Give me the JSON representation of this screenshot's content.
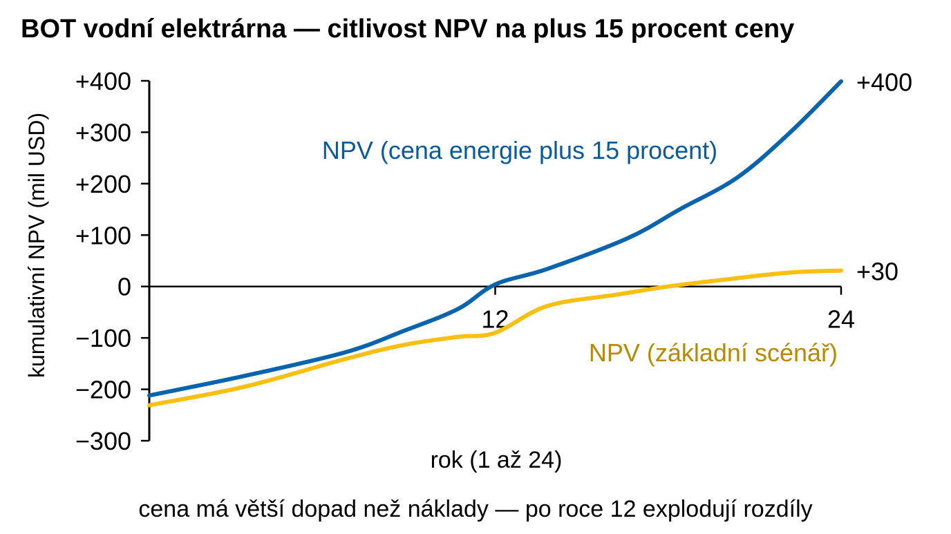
{
  "chart_data": {
    "type": "line",
    "title": "BOT vodní elektrárna — citlivost NPV na plus 15 procent ceny",
    "xlabel": "rok (1 až 24)",
    "ylabel": "kumulativní NPV (mil USD)",
    "footnote": "cena má větší dopad než náklady — po roce 12 explodují rozdíly",
    "xlim": [
      0,
      24
    ],
    "ylim": [
      -300,
      400
    ],
    "x_ticks": [
      {
        "value": 12,
        "label": "12"
      },
      {
        "value": 24,
        "label": "24"
      }
    ],
    "y_ticks": [
      {
        "value": 400,
        "label": "+400"
      },
      {
        "value": 300,
        "label": "+300"
      },
      {
        "value": 200,
        "label": "+200"
      },
      {
        "value": 100,
        "label": "+100"
      },
      {
        "value": 0,
        "label": "0"
      },
      {
        "value": -100,
        "label": "−100"
      },
      {
        "value": -200,
        "label": "−200"
      },
      {
        "value": -300,
        "label": "−300"
      }
    ],
    "grid": false,
    "series": [
      {
        "name": "NPV (cena energie plus 15 procent)",
        "color": "#0a64ad",
        "label_color": "#0a5a9c",
        "end_label": "+400",
        "x": [
          0,
          3.3,
          6.8,
          8.8,
          10.7,
          12,
          13.8,
          16.6,
          18.4,
          20.4,
          22.2,
          24
        ],
        "y": [
          -212,
          -174,
          -128,
          -87,
          -44,
          4,
          34,
          94,
          150,
          212,
          298,
          399
        ]
      },
      {
        "name": "NPV (základní scénář)",
        "color": "#fbbf0f",
        "label_color": "#b88a00",
        "end_label": "+30",
        "x": [
          0,
          3.3,
          6.8,
          8.8,
          10.7,
          12,
          13.8,
          16.2,
          18.0,
          19.9,
          22.2,
          24
        ],
        "y": [
          -231,
          -195,
          -141,
          -114,
          -98,
          -90,
          -38,
          -16,
          0,
          13,
          27,
          31
        ]
      }
    ]
  }
}
